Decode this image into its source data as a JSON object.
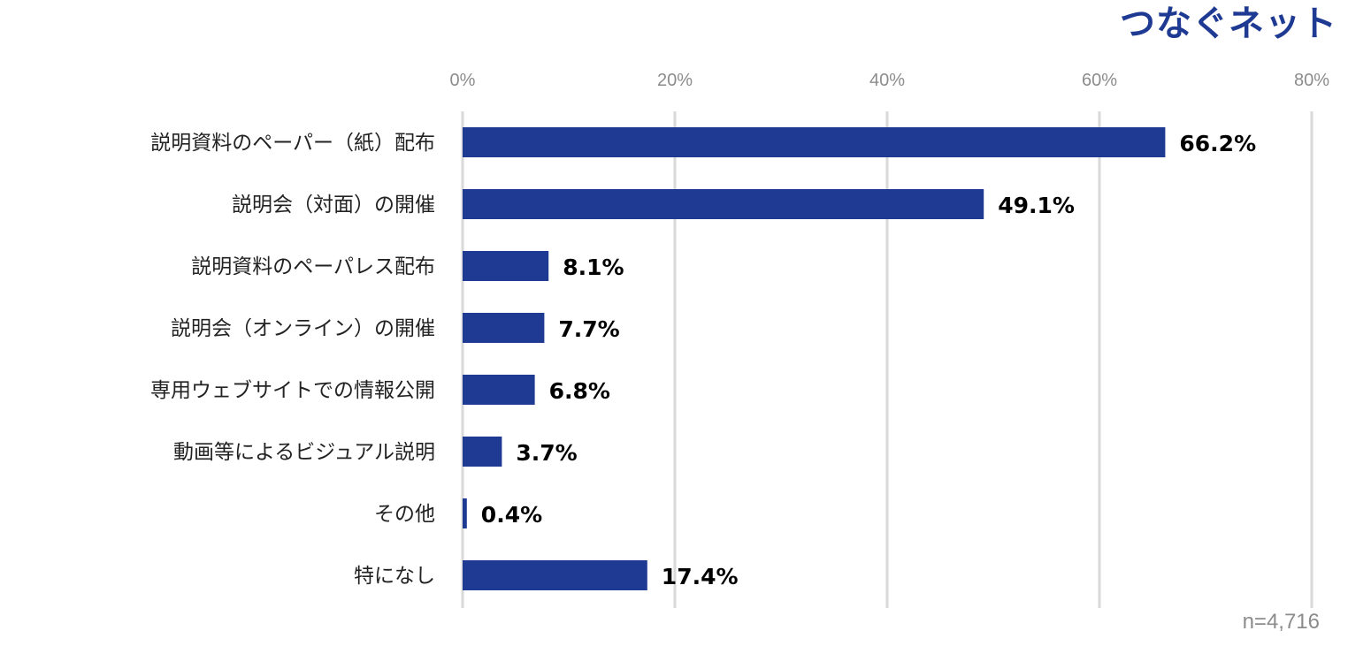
{
  "brand": {
    "logo_text": "つなぐネット",
    "logo_color": "#1f3a93"
  },
  "footer": {
    "sample_size": "n=4,716"
  },
  "colors": {
    "bar": "#1f3a93",
    "grid": "#d9d9d9"
  },
  "chart_data": {
    "type": "bar",
    "orientation": "horizontal",
    "categories": [
      "説明資料のペーパー（紙）配布",
      "説明会（対面）の開催",
      "説明資料のペーパレス配布",
      "説明会（オンライン）の開催",
      "専用ウェブサイトでの情報公開",
      "動画等によるビジュアル説明",
      "その他",
      "特になし"
    ],
    "values": [
      66.2,
      49.1,
      8.1,
      7.7,
      6.8,
      3.7,
      0.4,
      17.4
    ],
    "value_labels": [
      "66.2%",
      "49.1%",
      "8.1%",
      "7.7%",
      "6.8%",
      "3.7%",
      "0.4%",
      "17.4%"
    ],
    "xlim": [
      0,
      80
    ],
    "x_ticks": [
      0,
      20,
      40,
      60,
      80
    ],
    "x_tick_labels": [
      "0%",
      "20%",
      "40%",
      "60%",
      "80%"
    ],
    "x_axis_position": "top",
    "grid": true,
    "legend": "none"
  }
}
